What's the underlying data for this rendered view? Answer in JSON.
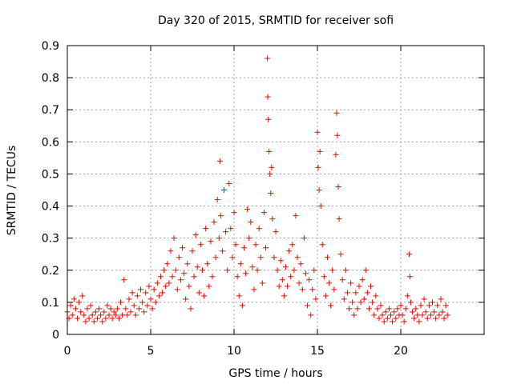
{
  "chart_data": {
    "type": "scatter",
    "title": "Day 320 of 2015, SRMTID for receiver sofi",
    "xlabel": "GPS time / hours",
    "ylabel": "SRMTID / TECUs",
    "xlim": [
      0,
      25
    ],
    "ylim": [
      0,
      0.9
    ],
    "x_ticks": [
      0,
      5,
      10,
      15,
      20
    ],
    "x_tick_labels": [
      "0",
      "5",
      "10",
      "15",
      "20"
    ],
    "y_ticks": [
      0,
      0.1,
      0.2,
      0.3,
      0.4,
      0.5,
      0.6,
      0.7,
      0.8,
      0.9
    ],
    "y_tick_labels": [
      "0",
      "0.1",
      "0.2",
      "0.3",
      "0.4",
      "0.5",
      "0.6",
      "0.7",
      "0.8",
      "0.9"
    ],
    "grid": true,
    "marker": "+",
    "series": [
      {
        "name": "SRMTID",
        "color": "#ff0000",
        "points": [
          [
            0.0,
            0.07
          ],
          [
            0.1,
            0.05
          ],
          [
            0.2,
            0.09
          ],
          [
            0.3,
            0.06
          ],
          [
            0.4,
            0.11
          ],
          [
            0.5,
            0.08
          ],
          [
            0.6,
            0.05
          ],
          [
            0.7,
            0.1
          ],
          [
            0.8,
            0.07
          ],
          [
            0.9,
            0.12
          ],
          [
            1.0,
            0.06
          ],
          [
            1.1,
            0.04
          ],
          [
            1.2,
            0.08
          ],
          [
            1.3,
            0.05
          ],
          [
            1.4,
            0.09
          ],
          [
            1.5,
            0.06
          ],
          [
            1.6,
            0.04
          ],
          [
            1.7,
            0.07
          ],
          [
            1.8,
            0.05
          ],
          [
            1.9,
            0.08
          ],
          [
            2.0,
            0.06
          ],
          [
            2.1,
            0.04
          ],
          [
            2.2,
            0.07
          ],
          [
            2.3,
            0.05
          ],
          [
            2.4,
            0.09
          ],
          [
            2.5,
            0.06
          ],
          [
            2.6,
            0.08
          ],
          [
            2.7,
            0.05
          ],
          [
            2.8,
            0.07
          ],
          [
            2.9,
            0.06
          ],
          [
            3.0,
            0.08
          ],
          [
            3.1,
            0.05
          ],
          [
            3.2,
            0.1
          ],
          [
            3.3,
            0.06
          ],
          [
            3.4,
            0.17
          ],
          [
            3.5,
            0.08
          ],
          [
            3.6,
            0.06
          ],
          [
            3.7,
            0.11
          ],
          [
            3.8,
            0.07
          ],
          [
            3.9,
            0.13
          ],
          [
            4.0,
            0.09
          ],
          [
            4.1,
            0.06
          ],
          [
            4.2,
            0.12
          ],
          [
            4.3,
            0.08
          ],
          [
            4.4,
            0.14
          ],
          [
            4.5,
            0.1
          ],
          [
            4.6,
            0.07
          ],
          [
            4.7,
            0.13
          ],
          [
            4.8,
            0.09
          ],
          [
            4.9,
            0.15
          ],
          [
            5.0,
            0.11
          ],
          [
            5.1,
            0.08
          ],
          [
            5.2,
            0.14
          ],
          [
            5.3,
            0.1
          ],
          [
            5.4,
            0.16
          ],
          [
            5.5,
            0.12
          ],
          [
            5.6,
            0.18
          ],
          [
            5.7,
            0.13
          ],
          [
            5.8,
            0.2
          ],
          [
            5.9,
            0.15
          ],
          [
            6.0,
            0.22
          ],
          [
            6.1,
            0.16
          ],
          [
            6.2,
            0.26
          ],
          [
            6.3,
            0.18
          ],
          [
            6.4,
            0.3
          ],
          [
            6.5,
            0.2
          ],
          [
            6.6,
            0.14
          ],
          [
            6.7,
            0.24
          ],
          [
            6.8,
            0.17
          ],
          [
            6.9,
            0.27
          ],
          [
            7.0,
            0.19
          ],
          [
            7.1,
            0.11
          ],
          [
            7.2,
            0.22
          ],
          [
            7.3,
            0.15
          ],
          [
            7.4,
            0.08
          ],
          [
            7.5,
            0.26
          ],
          [
            7.6,
            0.18
          ],
          [
            7.7,
            0.31
          ],
          [
            7.8,
            0.21
          ],
          [
            7.9,
            0.13
          ],
          [
            8.0,
            0.28
          ],
          [
            8.1,
            0.2
          ],
          [
            8.2,
            0.12
          ],
          [
            8.3,
            0.33
          ],
          [
            8.4,
            0.22
          ],
          [
            8.5,
            0.15
          ],
          [
            8.6,
            0.29
          ],
          [
            8.7,
            0.18
          ],
          [
            8.8,
            0.35
          ],
          [
            8.9,
            0.24
          ],
          [
            9.0,
            0.42
          ],
          [
            9.1,
            0.3
          ],
          [
            9.15,
            0.54
          ],
          [
            9.2,
            0.37
          ],
          [
            9.3,
            0.26
          ],
          [
            9.4,
            0.45
          ],
          [
            9.5,
            0.32
          ],
          [
            9.6,
            0.2
          ],
          [
            9.7,
            0.47
          ],
          [
            9.8,
            0.33
          ],
          [
            9.9,
            0.24
          ],
          [
            10.0,
            0.38
          ],
          [
            10.1,
            0.28
          ],
          [
            10.2,
            0.18
          ],
          [
            10.3,
            0.12
          ],
          [
            10.4,
            0.22
          ],
          [
            10.5,
            0.09
          ],
          [
            10.6,
            0.27
          ],
          [
            10.7,
            0.19
          ],
          [
            10.8,
            0.39
          ],
          [
            10.9,
            0.3
          ],
          [
            11.0,
            0.35
          ],
          [
            11.1,
            0.21
          ],
          [
            11.2,
            0.14
          ],
          [
            11.3,
            0.28
          ],
          [
            11.4,
            0.2
          ],
          [
            11.5,
            0.33
          ],
          [
            11.6,
            0.24
          ],
          [
            11.7,
            0.16
          ],
          [
            11.8,
            0.38
          ],
          [
            11.9,
            0.27
          ],
          [
            12.0,
            0.86
          ],
          [
            12.02,
            0.74
          ],
          [
            12.05,
            0.67
          ],
          [
            12.1,
            0.57
          ],
          [
            12.15,
            0.5
          ],
          [
            12.2,
            0.44
          ],
          [
            12.25,
            0.52
          ],
          [
            12.3,
            0.36
          ],
          [
            12.4,
            0.24
          ],
          [
            12.5,
            0.32
          ],
          [
            12.6,
            0.2
          ],
          [
            12.7,
            0.15
          ],
          [
            12.8,
            0.23
          ],
          [
            12.9,
            0.17
          ],
          [
            13.0,
            0.12
          ],
          [
            13.1,
            0.21
          ],
          [
            13.2,
            0.15
          ],
          [
            13.3,
            0.26
          ],
          [
            13.4,
            0.18
          ],
          [
            13.5,
            0.28
          ],
          [
            13.6,
            0.2
          ],
          [
            13.7,
            0.37
          ],
          [
            13.8,
            0.24
          ],
          [
            13.9,
            0.16
          ],
          [
            14.0,
            0.22
          ],
          [
            14.1,
            0.14
          ],
          [
            14.2,
            0.3
          ],
          [
            14.3,
            0.19
          ],
          [
            14.4,
            0.09
          ],
          [
            14.5,
            0.17
          ],
          [
            14.6,
            0.06
          ],
          [
            14.7,
            0.14
          ],
          [
            14.8,
            0.2
          ],
          [
            14.9,
            0.11
          ],
          [
            15.0,
            0.63
          ],
          [
            15.05,
            0.52
          ],
          [
            15.1,
            0.45
          ],
          [
            15.15,
            0.57
          ],
          [
            15.2,
            0.4
          ],
          [
            15.3,
            0.28
          ],
          [
            15.4,
            0.18
          ],
          [
            15.5,
            0.12
          ],
          [
            15.6,
            0.24
          ],
          [
            15.7,
            0.16
          ],
          [
            15.8,
            0.09
          ],
          [
            15.9,
            0.2
          ],
          [
            16.0,
            0.14
          ],
          [
            16.1,
            0.56
          ],
          [
            16.15,
            0.69
          ],
          [
            16.2,
            0.62
          ],
          [
            16.25,
            0.46
          ],
          [
            16.3,
            0.36
          ],
          [
            16.4,
            0.25
          ],
          [
            16.5,
            0.17
          ],
          [
            16.6,
            0.11
          ],
          [
            16.7,
            0.2
          ],
          [
            16.8,
            0.13
          ],
          [
            16.9,
            0.08
          ],
          [
            17.0,
            0.16
          ],
          [
            17.1,
            0.1
          ],
          [
            17.2,
            0.06
          ],
          [
            17.3,
            0.13
          ],
          [
            17.4,
            0.08
          ],
          [
            17.5,
            0.15
          ],
          [
            17.6,
            0.1
          ],
          [
            17.7,
            0.17
          ],
          [
            17.8,
            0.11
          ],
          [
            17.9,
            0.2
          ],
          [
            18.0,
            0.13
          ],
          [
            18.1,
            0.08
          ],
          [
            18.2,
            0.15
          ],
          [
            18.3,
            0.1
          ],
          [
            18.4,
            0.06
          ],
          [
            18.5,
            0.12
          ],
          [
            18.6,
            0.08
          ],
          [
            18.7,
            0.05
          ],
          [
            18.8,
            0.09
          ],
          [
            18.9,
            0.06
          ],
          [
            19.0,
            0.04
          ],
          [
            19.1,
            0.07
          ],
          [
            19.2,
            0.05
          ],
          [
            19.3,
            0.08
          ],
          [
            19.4,
            0.06
          ],
          [
            19.5,
            0.04
          ],
          [
            19.6,
            0.07
          ],
          [
            19.7,
            0.05
          ],
          [
            19.8,
            0.08
          ],
          [
            19.9,
            0.06
          ],
          [
            20.0,
            0.09
          ],
          [
            20.1,
            0.06
          ],
          [
            20.2,
            0.04
          ],
          [
            20.3,
            0.08
          ],
          [
            20.4,
            0.12
          ],
          [
            20.5,
            0.25
          ],
          [
            20.55,
            0.18
          ],
          [
            20.6,
            0.1
          ],
          [
            20.7,
            0.07
          ],
          [
            20.8,
            0.05
          ],
          [
            20.9,
            0.08
          ],
          [
            21.0,
            0.06
          ],
          [
            21.1,
            0.04
          ],
          [
            21.2,
            0.09
          ],
          [
            21.3,
            0.06
          ],
          [
            21.4,
            0.11
          ],
          [
            21.5,
            0.07
          ],
          [
            21.6,
            0.05
          ],
          [
            21.7,
            0.09
          ],
          [
            21.8,
            0.06
          ],
          [
            21.9,
            0.1
          ],
          [
            22.0,
            0.07
          ],
          [
            22.1,
            0.05
          ],
          [
            22.2,
            0.09
          ],
          [
            22.3,
            0.06
          ],
          [
            22.4,
            0.11
          ],
          [
            22.5,
            0.07
          ],
          [
            22.6,
            0.05
          ],
          [
            22.7,
            0.09
          ],
          [
            22.8,
            0.06
          ]
        ]
      }
    ]
  }
}
